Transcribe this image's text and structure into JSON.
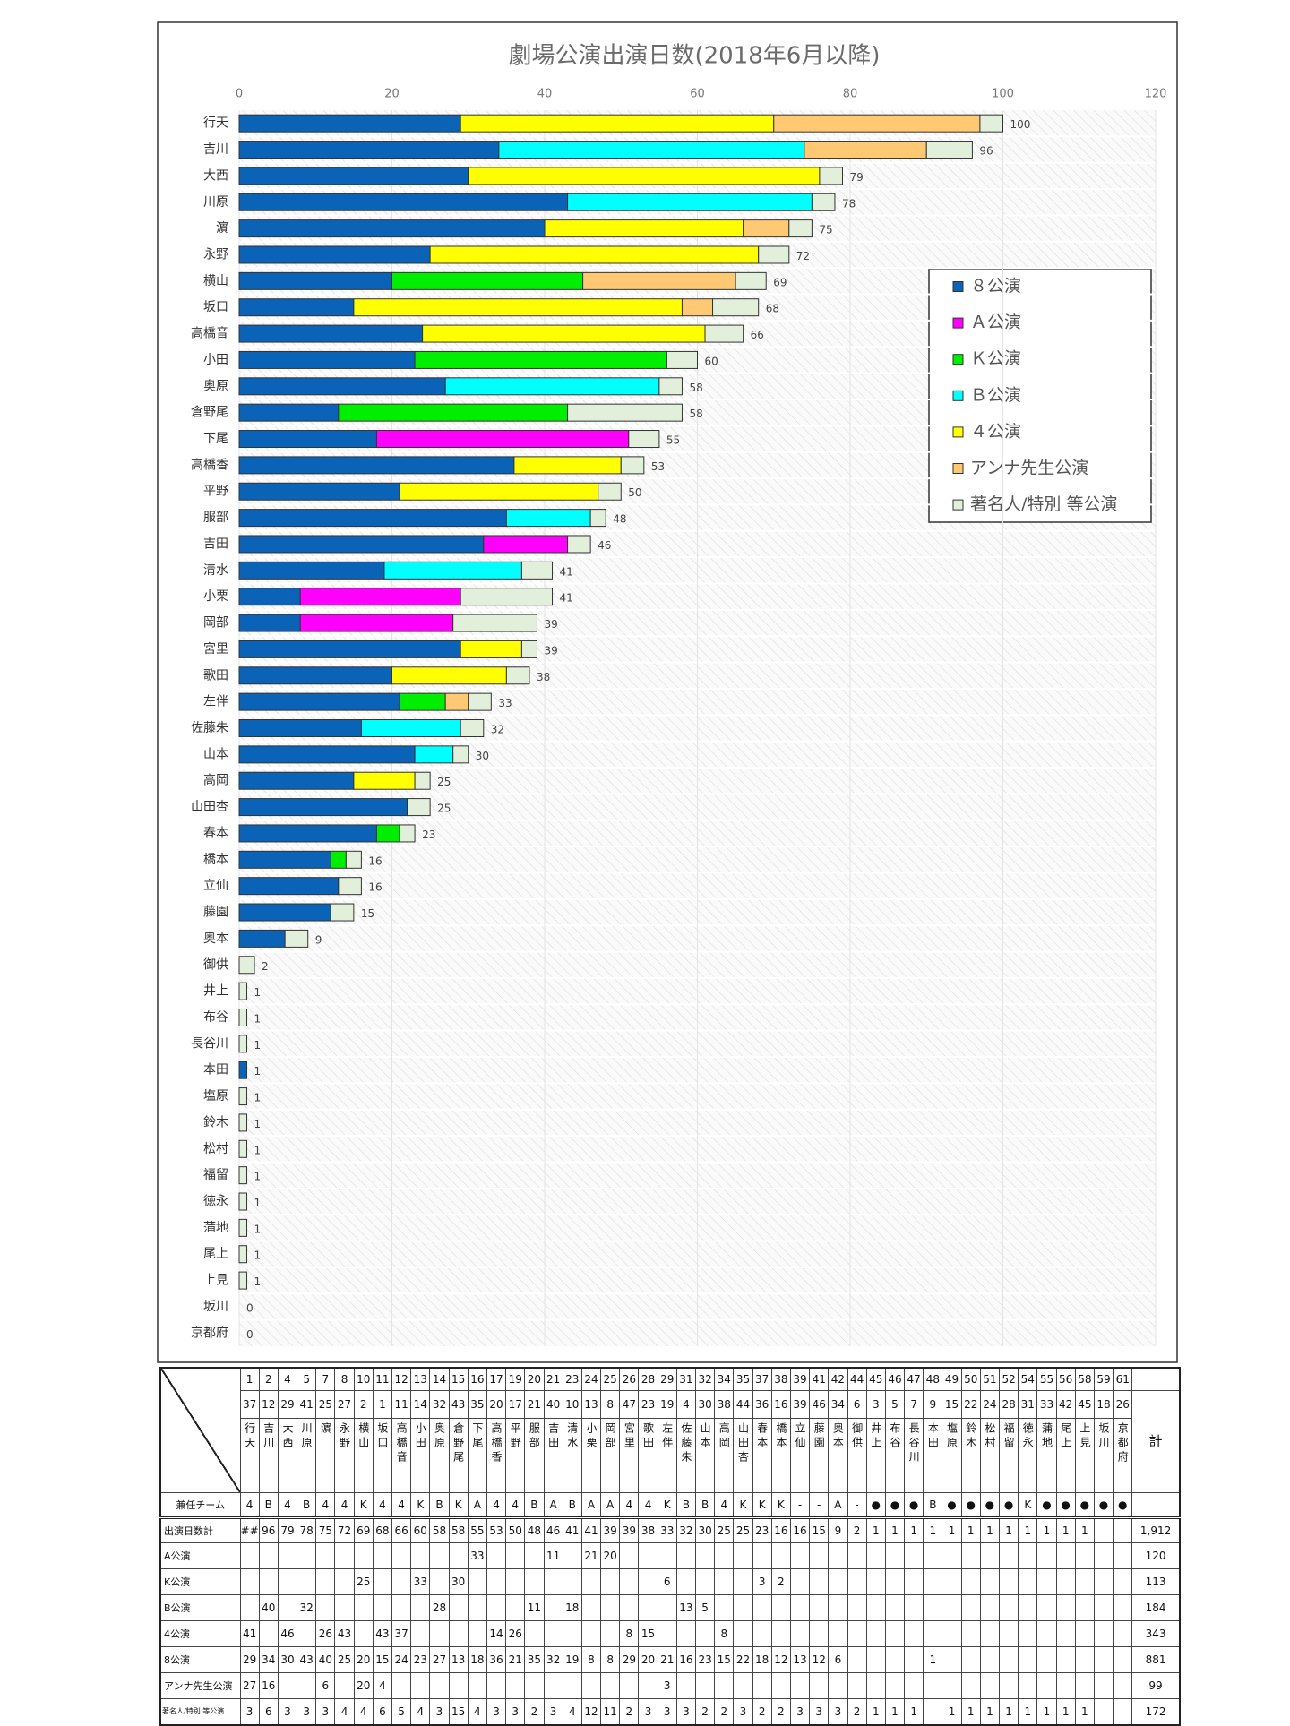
{
  "chart_data": {
    "type": "bar",
    "orientation": "horizontal",
    "stacked": true,
    "title": "劇場公演出演日数(2018年6月以降)",
    "categories": [
      "行天",
      "吉川",
      "大西",
      "川原",
      "濵",
      "永野",
      "横山",
      "坂口",
      "高橋音",
      "小田",
      "奥原",
      "倉野尾",
      "下尾",
      "高橋香",
      "平野",
      "服部",
      "吉田",
      "清水",
      "小栗",
      "岡部",
      "宮里",
      "歌田",
      "左伴",
      "佐藤朱",
      "山本",
      "高岡",
      "山田杏",
      "春本",
      "橋本",
      "立仙",
      "藤園",
      "奥本",
      "御供",
      "井上",
      "布谷",
      "長谷川",
      "本田",
      "塩原",
      "鈴木",
      "松村",
      "福留",
      "徳永",
      "蒲地",
      "尾上",
      "上見",
      "坂川",
      "京都府"
    ],
    "series": [
      {
        "name": "８公演",
        "color": "#0b63b8",
        "values": [
          29,
          34,
          30,
          43,
          40,
          25,
          20,
          15,
          24,
          23,
          27,
          13,
          18,
          36,
          21,
          35,
          32,
          19,
          8,
          8,
          29,
          20,
          21,
          16,
          23,
          15,
          22,
          18,
          12,
          13,
          12,
          6,
          null,
          null,
          null,
          null,
          1,
          null,
          null,
          null,
          null,
          null,
          null,
          null,
          null,
          null,
          null
        ]
      },
      {
        "name": "Ａ公演",
        "color": "#ff00ff",
        "values": [
          null,
          null,
          null,
          null,
          null,
          null,
          null,
          null,
          null,
          null,
          null,
          null,
          33,
          null,
          null,
          null,
          11,
          null,
          21,
          20,
          null,
          null,
          null,
          null,
          null,
          null,
          null,
          null,
          null,
          null,
          null,
          null,
          null,
          null,
          null,
          null,
          null,
          null,
          null,
          null,
          null,
          null,
          null,
          null,
          null,
          null,
          null
        ]
      },
      {
        "name": "Ｋ公演",
        "color": "#00ee00",
        "values": [
          null,
          null,
          null,
          null,
          null,
          null,
          25,
          null,
          null,
          33,
          null,
          30,
          null,
          null,
          null,
          null,
          null,
          null,
          null,
          null,
          null,
          null,
          6,
          null,
          null,
          null,
          null,
          3,
          2,
          null,
          null,
          null,
          null,
          null,
          null,
          null,
          null,
          null,
          null,
          null,
          null,
          null,
          null,
          null,
          null,
          null,
          null
        ]
      },
      {
        "name": "Ｂ公演",
        "color": "#00ffff",
        "values": [
          null,
          40,
          null,
          32,
          null,
          null,
          null,
          null,
          null,
          null,
          28,
          null,
          null,
          null,
          null,
          11,
          null,
          18,
          null,
          null,
          null,
          null,
          null,
          13,
          5,
          null,
          null,
          null,
          null,
          null,
          null,
          null,
          null,
          null,
          null,
          null,
          null,
          null,
          null,
          null,
          null,
          null,
          null,
          null,
          null,
          null,
          null
        ]
      },
      {
        "name": "４公演",
        "color": "#ffff00",
        "values": [
          41,
          null,
          46,
          null,
          26,
          43,
          null,
          43,
          37,
          null,
          null,
          null,
          null,
          14,
          26,
          null,
          null,
          null,
          null,
          null,
          8,
          15,
          null,
          null,
          null,
          8,
          null,
          null,
          null,
          null,
          null,
          null,
          null,
          null,
          null,
          null,
          null,
          null,
          null,
          null,
          null,
          null,
          null,
          null,
          null,
          null,
          null
        ]
      },
      {
        "name": "アンナ先生公演",
        "color": "#ffc973",
        "values": [
          27,
          16,
          null,
          null,
          6,
          null,
          20,
          4,
          null,
          null,
          null,
          null,
          null,
          null,
          null,
          null,
          null,
          null,
          null,
          null,
          null,
          null,
          3,
          null,
          null,
          null,
          null,
          null,
          null,
          null,
          null,
          null,
          null,
          null,
          null,
          null,
          null,
          null,
          null,
          null,
          null,
          null,
          null,
          null,
          null,
          null,
          null
        ]
      },
      {
        "name": "著名人/特別 等公演",
        "color": "#e2efda",
        "values": [
          3,
          6,
          3,
          3,
          3,
          4,
          4,
          6,
          5,
          4,
          3,
          15,
          4,
          3,
          3,
          2,
          3,
          4,
          12,
          11,
          2,
          3,
          3,
          3,
          2,
          2,
          3,
          2,
          2,
          3,
          3,
          3,
          2,
          1,
          1,
          1,
          null,
          1,
          1,
          1,
          1,
          1,
          1,
          1,
          1,
          null,
          null
        ]
      }
    ],
    "totals": [
      100,
      96,
      79,
      78,
      75,
      72,
      69,
      68,
      66,
      60,
      58,
      58,
      55,
      53,
      50,
      48,
      46,
      41,
      41,
      39,
      39,
      38,
      33,
      32,
      30,
      25,
      25,
      23,
      16,
      16,
      15,
      9,
      2,
      1,
      1,
      1,
      1,
      1,
      1,
      1,
      1,
      1,
      1,
      1,
      1,
      0,
      0
    ],
    "xlim": [
      0,
      120
    ],
    "xticks": [
      0,
      20,
      40,
      60,
      80,
      100,
      120
    ],
    "grid": true,
    "legend": "right"
  },
  "table": {
    "numbers_top": [
      1,
      2,
      4,
      5,
      7,
      8,
      10,
      11,
      12,
      13,
      14,
      15,
      16,
      17,
      19,
      20,
      21,
      23,
      24,
      25,
      26,
      28,
      29,
      31,
      32,
      34,
      35,
      37,
      38,
      39,
      41,
      42,
      44,
      45,
      46,
      47,
      48,
      49,
      50,
      51,
      52,
      54,
      55,
      56,
      58,
      59,
      61
    ],
    "numbers_second": [
      37,
      12,
      29,
      41,
      25,
      27,
      2,
      1,
      11,
      14,
      32,
      43,
      35,
      20,
      17,
      21,
      40,
      10,
      13,
      8,
      47,
      23,
      19,
      4,
      30,
      38,
      44,
      36,
      16,
      39,
      46,
      34,
      6,
      3,
      5,
      7,
      9,
      15,
      22,
      24,
      28,
      31,
      33,
      42,
      45,
      18,
      26
    ],
    "names": [
      "行天",
      "吉川",
      "大西",
      "川原",
      "濵",
      "永野",
      "横山",
      "坂口",
      "高橋音",
      "小田",
      "奥原",
      "倉野尾",
      "下尾",
      "高橋香",
      "平野",
      "服部",
      "吉田",
      "清水",
      "小栗",
      "岡部",
      "宮里",
      "歌田",
      "左伴",
      "佐藤朱",
      "山本",
      "高岡",
      "山田杏",
      "春本",
      "橋本",
      "立仙",
      "藤園",
      "奥本",
      "御供",
      "井上",
      "布谷",
      "長谷川",
      "本田",
      "塩原",
      "鈴木",
      "松村",
      "福留",
      "徳永",
      "蒲地",
      "尾上",
      "上見",
      "坂川",
      "京都府"
    ],
    "total_header": "計",
    "team_label": "兼任チーム",
    "teams": [
      "4",
      "B",
      "4",
      "B",
      "4",
      "4",
      "K",
      "4",
      "4",
      "K",
      "B",
      "K",
      "A",
      "4",
      "4",
      "B",
      "A",
      "B",
      "A",
      "A",
      "4",
      "4",
      "K",
      "B",
      "B",
      "4",
      "K",
      "K",
      "K",
      "-",
      "-",
      "A",
      "-",
      "●",
      "●",
      "●",
      "B",
      "●",
      "●",
      "●",
      "●",
      "K",
      "●",
      "●",
      "●",
      "●",
      "●"
    ],
    "days_label": "出演日数計",
    "days": [
      "##",
      96,
      79,
      78,
      75,
      72,
      69,
      68,
      66,
      60,
      58,
      58,
      55,
      53,
      50,
      48,
      46,
      41,
      41,
      39,
      39,
      38,
      33,
      32,
      30,
      25,
      25,
      23,
      16,
      16,
      15,
      9,
      2,
      1,
      1,
      1,
      1,
      1,
      1,
      1,
      1,
      1,
      1,
      1,
      1,
      null,
      null
    ],
    "days_total": "1,912",
    "rows": [
      {
        "label": "A公演",
        "values": [
          null,
          null,
          null,
          null,
          null,
          null,
          null,
          null,
          null,
          null,
          null,
          null,
          33,
          null,
          null,
          null,
          11,
          null,
          21,
          20,
          null,
          null,
          null,
          null,
          null,
          null,
          null,
          null,
          null,
          null,
          null,
          null,
          null,
          null,
          null,
          null,
          null,
          null,
          null,
          null,
          null,
          null,
          null,
          null,
          null,
          null,
          null
        ],
        "total": 120
      },
      {
        "label": "K公演",
        "values": [
          null,
          null,
          null,
          null,
          null,
          null,
          25,
          null,
          null,
          33,
          null,
          30,
          null,
          null,
          null,
          null,
          null,
          null,
          null,
          null,
          null,
          null,
          6,
          null,
          null,
          null,
          null,
          3,
          2,
          null,
          null,
          null,
          null,
          null,
          null,
          null,
          null,
          null,
          null,
          null,
          null,
          null,
          null,
          null,
          null,
          null,
          null
        ],
        "total": 113
      },
      {
        "label": "B公演",
        "values": [
          null,
          40,
          null,
          32,
          null,
          null,
          null,
          null,
          null,
          null,
          28,
          null,
          null,
          null,
          null,
          11,
          null,
          18,
          null,
          null,
          null,
          null,
          null,
          13,
          5,
          null,
          null,
          null,
          null,
          null,
          null,
          null,
          null,
          null,
          null,
          null,
          null,
          null,
          null,
          null,
          null,
          null,
          null,
          null,
          null,
          null,
          null
        ],
        "total": 184
      },
      {
        "label": "4公演",
        "values": [
          41,
          null,
          46,
          null,
          26,
          43,
          null,
          43,
          37,
          null,
          null,
          null,
          null,
          14,
          26,
          null,
          null,
          null,
          null,
          null,
          8,
          15,
          null,
          null,
          null,
          8,
          null,
          null,
          null,
          null,
          null,
          null,
          null,
          null,
          null,
          null,
          null,
          null,
          null,
          null,
          null,
          null,
          null,
          null,
          null,
          null,
          null
        ],
        "total": 343
      },
      {
        "label": "8公演",
        "values": [
          29,
          34,
          30,
          43,
          40,
          25,
          20,
          15,
          24,
          23,
          27,
          13,
          18,
          36,
          21,
          35,
          32,
          19,
          8,
          8,
          29,
          20,
          21,
          16,
          23,
          15,
          22,
          18,
          12,
          13,
          12,
          6,
          null,
          null,
          null,
          null,
          1,
          null,
          null,
          null,
          null,
          null,
          null,
          null,
          null,
          null,
          null
        ],
        "total": 881
      },
      {
        "label": "アンナ先生公演",
        "values": [
          27,
          16,
          null,
          null,
          6,
          null,
          20,
          4,
          null,
          null,
          null,
          null,
          null,
          null,
          null,
          null,
          null,
          null,
          null,
          null,
          null,
          null,
          3,
          null,
          null,
          null,
          null,
          null,
          null,
          null,
          null,
          null,
          null,
          null,
          null,
          null,
          null,
          null,
          null,
          null,
          null,
          null,
          null,
          null,
          null,
          null,
          null
        ],
        "total": 99
      },
      {
        "label": "著名人/特別 等公演",
        "values": [
          3,
          6,
          3,
          3,
          3,
          4,
          4,
          6,
          5,
          4,
          3,
          15,
          4,
          3,
          3,
          2,
          3,
          4,
          12,
          11,
          2,
          3,
          3,
          3,
          2,
          2,
          3,
          2,
          2,
          3,
          3,
          3,
          2,
          1,
          1,
          1,
          null,
          1,
          1,
          1,
          1,
          1,
          1,
          1,
          1,
          null,
          null
        ],
        "total": 172
      }
    ]
  }
}
